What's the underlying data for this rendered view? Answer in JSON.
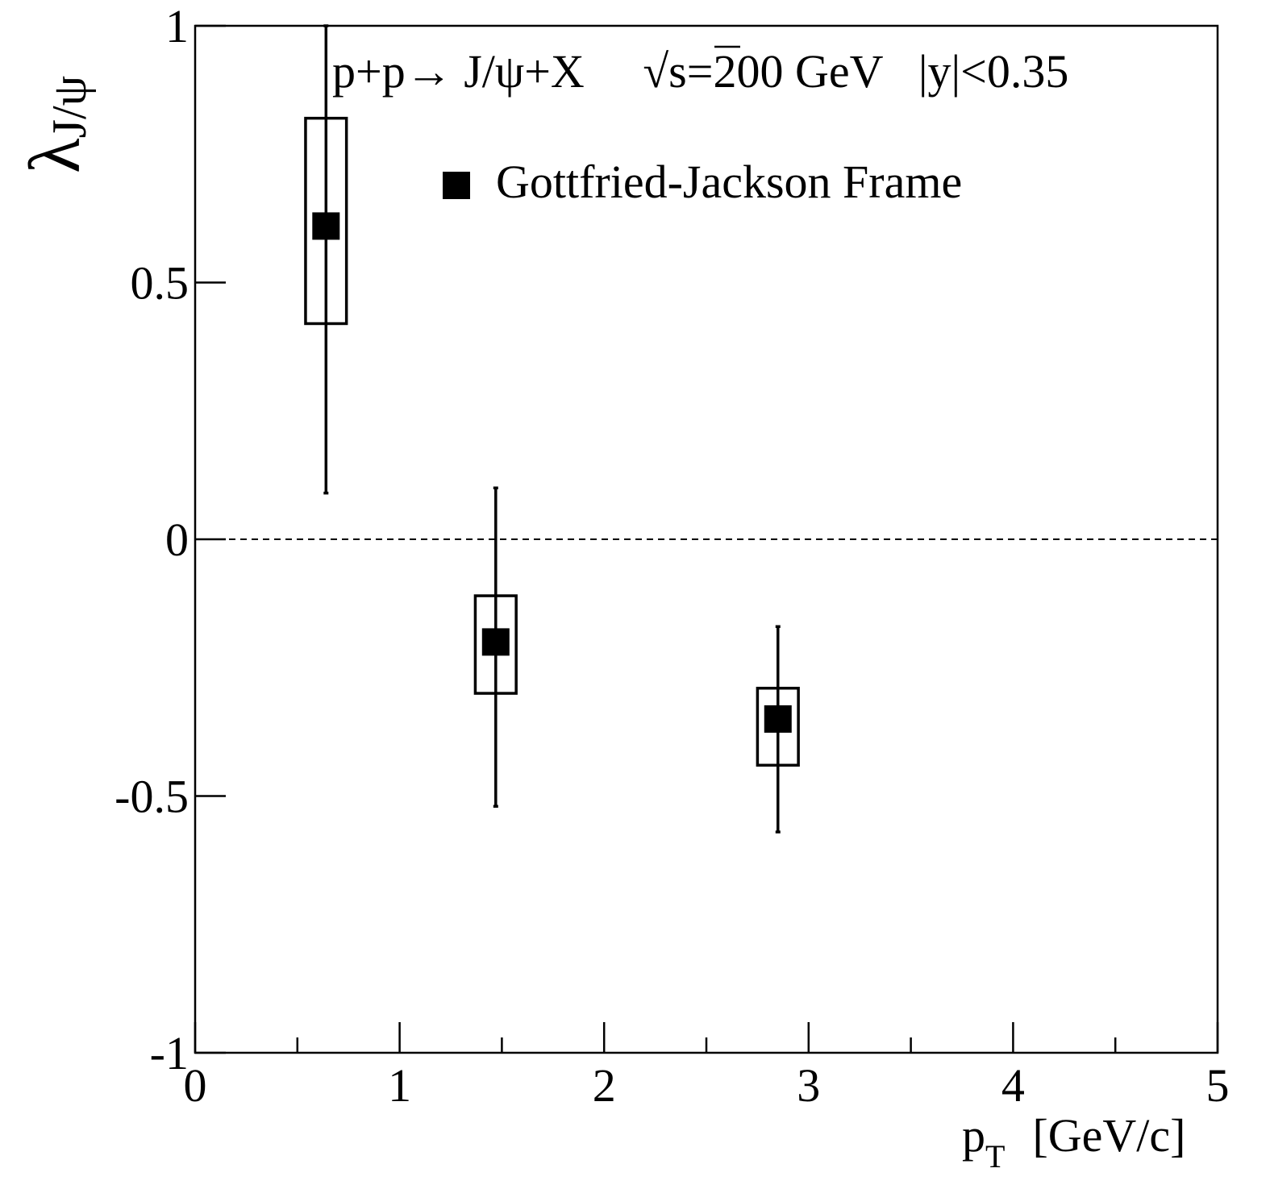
{
  "chart_data": {
    "type": "scatter",
    "title_parts": {
      "process": "p+p→ J/ψ+X",
      "sqrt": "√",
      "s_energy": "s=200 GeV",
      "rapidity": "|y|<0.35"
    },
    "xlabel": {
      "main": "p",
      "sub": "T",
      "unit": "[GeV/c]"
    },
    "ylabel": {
      "main": "λ",
      "sub": "J/ψ"
    },
    "xlim": [
      0,
      5
    ],
    "ylim": [
      -1,
      1
    ],
    "x_major_ticks": [
      0,
      1,
      2,
      3,
      4,
      5
    ],
    "x_tick_labels": [
      "0",
      "1",
      "2",
      "3",
      "4",
      "5"
    ],
    "x_minor_ticks": [
      0.5,
      1.5,
      2.5,
      3.5,
      4.5
    ],
    "y_major_ticks": [
      1,
      0.5,
      0,
      -0.5,
      -1
    ],
    "y_tick_labels": [
      "1",
      "0.5",
      "0",
      "-0.5",
      "-1"
    ],
    "reference_line": {
      "y": 0,
      "style": "dashed"
    },
    "legend": {
      "label": "Gottfried-Jackson Frame",
      "position": "top-right"
    },
    "grid": false,
    "series": [
      {
        "name": "Gottfried-Jackson Frame",
        "marker": "filled-square",
        "color": "#000000",
        "points": [
          {
            "x": 0.64,
            "y": 0.61,
            "stat_low": 0.09,
            "stat_high": 1.0,
            "sys_low": 0.42,
            "sys_high": 0.82,
            "sys_x_halfwidth": 0.1
          },
          {
            "x": 1.47,
            "y": -0.2,
            "stat_low": -0.52,
            "stat_high": 0.1,
            "sys_low": -0.3,
            "sys_high": -0.11,
            "sys_x_halfwidth": 0.1
          },
          {
            "x": 2.85,
            "y": -0.35,
            "stat_low": -0.57,
            "stat_high": -0.17,
            "sys_low": -0.44,
            "sys_high": -0.29,
            "sys_x_halfwidth": 0.1
          }
        ]
      }
    ]
  }
}
